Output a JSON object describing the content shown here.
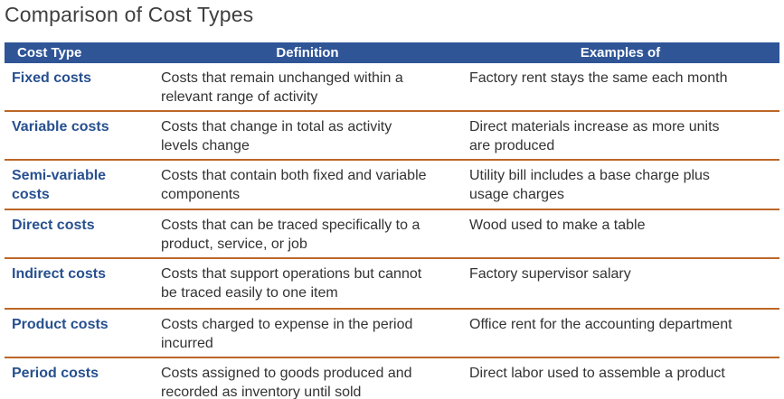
{
  "title": "Comparison of Cost Types",
  "colors": {
    "header_bg": "#2f5597",
    "header_text": "#ffffff",
    "row_label_text": "#27508f",
    "body_text": "#333333",
    "divider": "#bc6727",
    "title_text": "#3f3f3f"
  },
  "table": {
    "headers": [
      "Cost Type",
      "Definition",
      "Examples of"
    ],
    "rows": [
      {
        "type": "Fixed costs",
        "definition": "Costs that remain unchanged within a relevant range of activity",
        "example": "Factory rent stays the same each month"
      },
      {
        "type": "Variable costs",
        "definition": "Costs that change in total as activity levels change",
        "example": "Direct materials increase as more units are produced"
      },
      {
        "type": "Semi-variable costs",
        "definition": "Costs that contain both fixed and variable components",
        "example": "Utility bill includes a base charge plus usage charges"
      },
      {
        "type": "Direct costs",
        "definition": "Costs that can be traced specifically to a product, service, or job",
        "example": "Wood used to make a table"
      },
      {
        "type": "Indirect costs",
        "definition": "Costs that support operations but cannot be traced easily to one item",
        "example": "Factory supervisor salary"
      },
      {
        "type": "Product costs",
        "definition": "Costs charged to expense in the period incurred",
        "example": "Office rent for the accounting department"
      },
      {
        "type": "Period costs",
        "definition": "Costs assigned to goods produced and recorded as inventory until sold",
        "example": "Direct labor used to assemble a product"
      }
    ]
  }
}
